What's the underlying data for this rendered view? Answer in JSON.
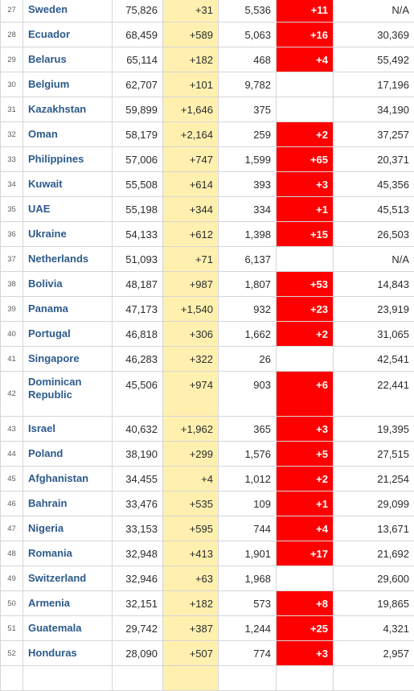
{
  "colors": {
    "new_cases_bg": "#fff0b0",
    "new_deaths_bg": "#ff0000",
    "link": "#2c5a8c"
  },
  "rows": [
    {
      "rank": "27",
      "country": "Sweden",
      "total": "75,826",
      "new_cases": "+31",
      "deaths": "5,536",
      "new_deaths": "+11",
      "right": "N/A"
    },
    {
      "rank": "28",
      "country": "Ecuador",
      "total": "68,459",
      "new_cases": "+589",
      "deaths": "5,063",
      "new_deaths": "+16",
      "right": "30,369"
    },
    {
      "rank": "29",
      "country": "Belarus",
      "total": "65,114",
      "new_cases": "+182",
      "deaths": "468",
      "new_deaths": "+4",
      "right": "55,492"
    },
    {
      "rank": "30",
      "country": "Belgium",
      "total": "62,707",
      "new_cases": "+101",
      "deaths": "9,782",
      "new_deaths": "",
      "right": "17,196"
    },
    {
      "rank": "31",
      "country": "Kazakhstan",
      "total": "59,899",
      "new_cases": "+1,646",
      "deaths": "375",
      "new_deaths": "",
      "right": "34,190"
    },
    {
      "rank": "32",
      "country": "Oman",
      "total": "58,179",
      "new_cases": "+2,164",
      "deaths": "259",
      "new_deaths": "+2",
      "right": "37,257"
    },
    {
      "rank": "33",
      "country": "Philippines",
      "total": "57,006",
      "new_cases": "+747",
      "deaths": "1,599",
      "new_deaths": "+65",
      "right": "20,371"
    },
    {
      "rank": "34",
      "country": "Kuwait",
      "total": "55,508",
      "new_cases": "+614",
      "deaths": "393",
      "new_deaths": "+3",
      "right": "45,356"
    },
    {
      "rank": "35",
      "country": "UAE",
      "total": "55,198",
      "new_cases": "+344",
      "deaths": "334",
      "new_deaths": "+1",
      "right": "45,513"
    },
    {
      "rank": "36",
      "country": "Ukraine",
      "total": "54,133",
      "new_cases": "+612",
      "deaths": "1,398",
      "new_deaths": "+15",
      "right": "26,503"
    },
    {
      "rank": "37",
      "country": "Netherlands",
      "total": "51,093",
      "new_cases": "+71",
      "deaths": "6,137",
      "new_deaths": "",
      "right": "N/A"
    },
    {
      "rank": "38",
      "country": "Bolivia",
      "total": "48,187",
      "new_cases": "+987",
      "deaths": "1,807",
      "new_deaths": "+53",
      "right": "14,843"
    },
    {
      "rank": "39",
      "country": "Panama",
      "total": "47,173",
      "new_cases": "+1,540",
      "deaths": "932",
      "new_deaths": "+23",
      "right": "23,919"
    },
    {
      "rank": "40",
      "country": "Portugal",
      "total": "46,818",
      "new_cases": "+306",
      "deaths": "1,662",
      "new_deaths": "+2",
      "right": "31,065"
    },
    {
      "rank": "41",
      "country": "Singapore",
      "total": "46,283",
      "new_cases": "+322",
      "deaths": "26",
      "new_deaths": "",
      "right": "42,541"
    },
    {
      "rank": "42",
      "country": "Dominican Republic",
      "total": "45,506",
      "new_cases": "+974",
      "deaths": "903",
      "new_deaths": "+6",
      "right": "22,441"
    },
    {
      "rank": "43",
      "country": "Israel",
      "total": "40,632",
      "new_cases": "+1,962",
      "deaths": "365",
      "new_deaths": "+3",
      "right": "19,395"
    },
    {
      "rank": "44",
      "country": "Poland",
      "total": "38,190",
      "new_cases": "+299",
      "deaths": "1,576",
      "new_deaths": "+5",
      "right": "27,515"
    },
    {
      "rank": "45",
      "country": "Afghanistan",
      "total": "34,455",
      "new_cases": "+4",
      "deaths": "1,012",
      "new_deaths": "+2",
      "right": "21,254"
    },
    {
      "rank": "46",
      "country": "Bahrain",
      "total": "33,476",
      "new_cases": "+535",
      "deaths": "109",
      "new_deaths": "+1",
      "right": "29,099"
    },
    {
      "rank": "47",
      "country": "Nigeria",
      "total": "33,153",
      "new_cases": "+595",
      "deaths": "744",
      "new_deaths": "+4",
      "right": "13,671"
    },
    {
      "rank": "48",
      "country": "Romania",
      "total": "32,948",
      "new_cases": "+413",
      "deaths": "1,901",
      "new_deaths": "+17",
      "right": "21,692"
    },
    {
      "rank": "49",
      "country": "Switzerland",
      "total": "32,946",
      "new_cases": "+63",
      "deaths": "1,968",
      "new_deaths": "",
      "right": "29,600"
    },
    {
      "rank": "50",
      "country": "Armenia",
      "total": "32,151",
      "new_cases": "+182",
      "deaths": "573",
      "new_deaths": "+8",
      "right": "19,865"
    },
    {
      "rank": "51",
      "country": "Guatemala",
      "total": "29,742",
      "new_cases": "+387",
      "deaths": "1,244",
      "new_deaths": "+25",
      "right": "4,321"
    },
    {
      "rank": "52",
      "country": "Honduras",
      "total": "28,090",
      "new_cases": "+507",
      "deaths": "774",
      "new_deaths": "+3",
      "right": "2,957"
    },
    {
      "rank": "",
      "country": "",
      "total": "",
      "new_cases": "",
      "deaths": "",
      "new_deaths": "",
      "right": ""
    }
  ]
}
